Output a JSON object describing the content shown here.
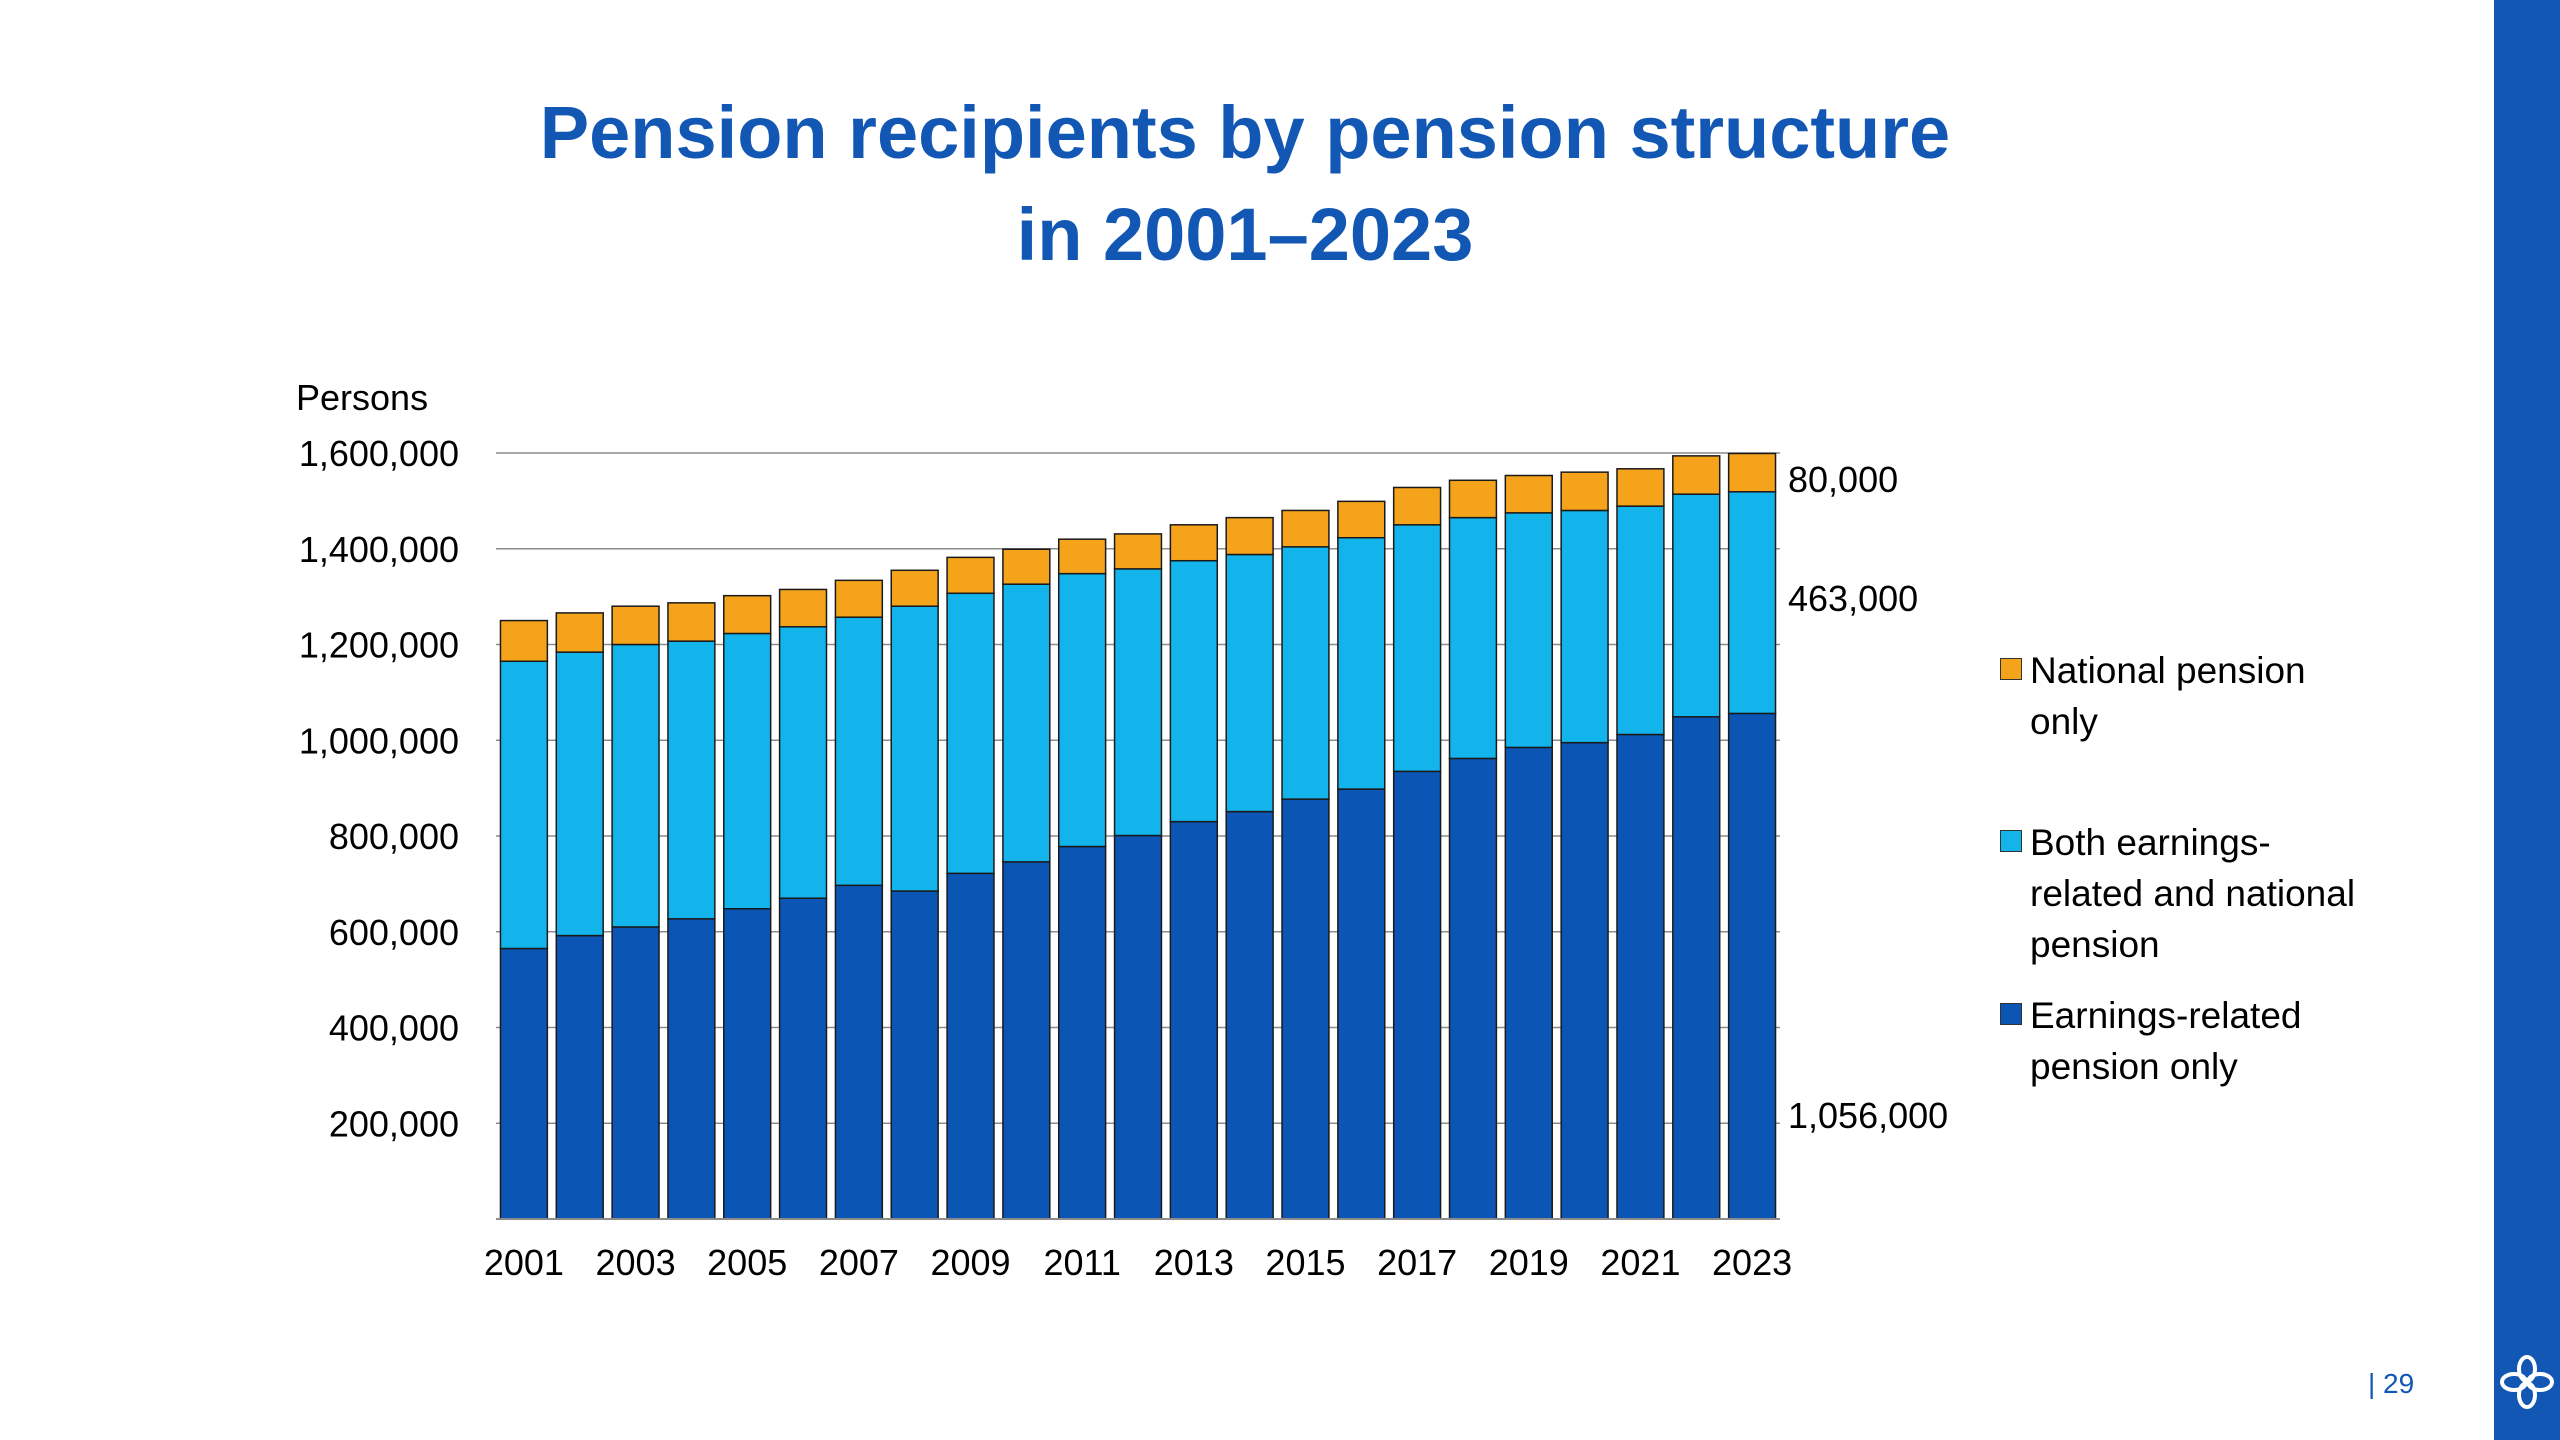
{
  "title": {
    "line1": "Pension recipients by pension structure",
    "line2": "in 2001–2023"
  },
  "page_number": "| 29",
  "logo_icon": "flower-emblem-icon",
  "colors": {
    "accent": "#1257b3",
    "earnings_related": "#0b55b5",
    "both": "#13b4ec",
    "national": "#f5a31b"
  },
  "chart_data": {
    "type": "bar",
    "stacked": true,
    "ylabel": "Persons",
    "ylim": [
      0,
      1600000
    ],
    "yticks": [
      200000,
      400000,
      600000,
      800000,
      1000000,
      1200000,
      1400000,
      1600000
    ],
    "ytick_labels": [
      "200,000",
      "400,000",
      "600,000",
      "800,000",
      "1,000,000",
      "1,200,000",
      "1,400,000",
      "1,600,000"
    ],
    "categories": [
      "2001",
      "2002",
      "2003",
      "2004",
      "2005",
      "2006",
      "2007",
      "2008",
      "2009",
      "2010",
      "2011",
      "2012",
      "2013",
      "2014",
      "2015",
      "2016",
      "2017",
      "2018",
      "2019",
      "2020",
      "2021",
      "2022",
      "2023"
    ],
    "xtick_labels": [
      "2001",
      "2003",
      "2005",
      "2007",
      "2009",
      "2011",
      "2013",
      "2015",
      "2017",
      "2019",
      "2021",
      "2023"
    ],
    "series": [
      {
        "name": "Earnings-related pension only",
        "color": "#0b55b5",
        "values": [
          565000,
          592000,
          610000,
          627000,
          648000,
          670000,
          697000,
          685000,
          722000,
          746000,
          778000,
          801000,
          830000,
          851000,
          877000,
          898000,
          935000,
          962000,
          985000,
          995000,
          1012000,
          1049000,
          1056000
        ]
      },
      {
        "name": "Both earnings-related and national pension",
        "color": "#13b4ec",
        "values": [
          600000,
          592000,
          590000,
          580000,
          575000,
          567000,
          560000,
          595000,
          585000,
          580000,
          570000,
          557000,
          545000,
          537000,
          527000,
          525000,
          515000,
          503000,
          490000,
          485000,
          477000,
          465000,
          463000
        ]
      },
      {
        "name": "National pension only",
        "color": "#f5a31b",
        "values": [
          85000,
          82000,
          80000,
          80000,
          79000,
          78000,
          77000,
          75000,
          75000,
          73000,
          72000,
          73000,
          75000,
          77000,
          76000,
          76000,
          78000,
          78000,
          78000,
          80000,
          78000,
          80000,
          80000
        ]
      }
    ],
    "end_labels": [
      "1,056,000",
      "463,000",
      "80,000"
    ],
    "legend_position": "right",
    "grid": "horizontal"
  }
}
